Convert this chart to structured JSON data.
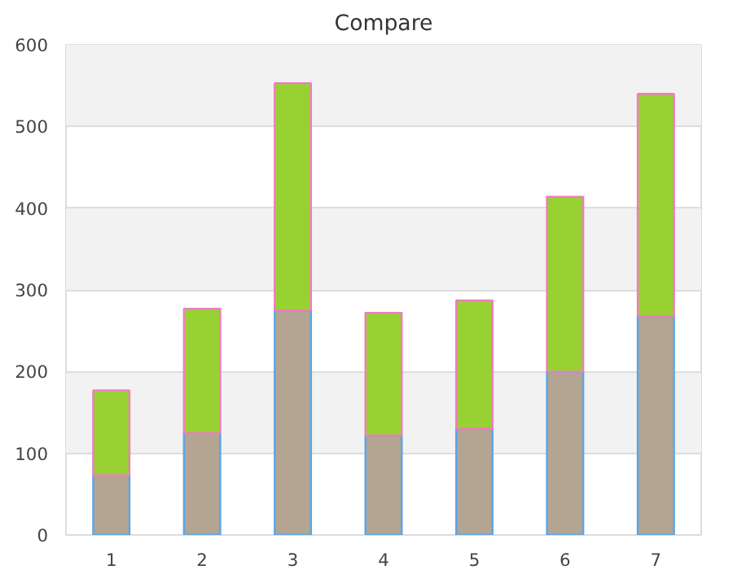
{
  "chart_data": {
    "type": "bar",
    "title": "Compare",
    "stacked": true,
    "categories": [
      "1",
      "2",
      "3",
      "4",
      "5",
      "6",
      "7"
    ],
    "series": [
      {
        "color": "#b3a592",
        "values": [
          73,
          125,
          275,
          122,
          130,
          200,
          268
        ]
      },
      {
        "color": "#98d132",
        "values": [
          104,
          152,
          278,
          150,
          157,
          214,
          272
        ]
      }
    ],
    "ylim": [
      0,
      600
    ],
    "yticks": [
      0,
      100,
      200,
      300,
      400,
      500,
      600
    ],
    "grid": "y"
  }
}
